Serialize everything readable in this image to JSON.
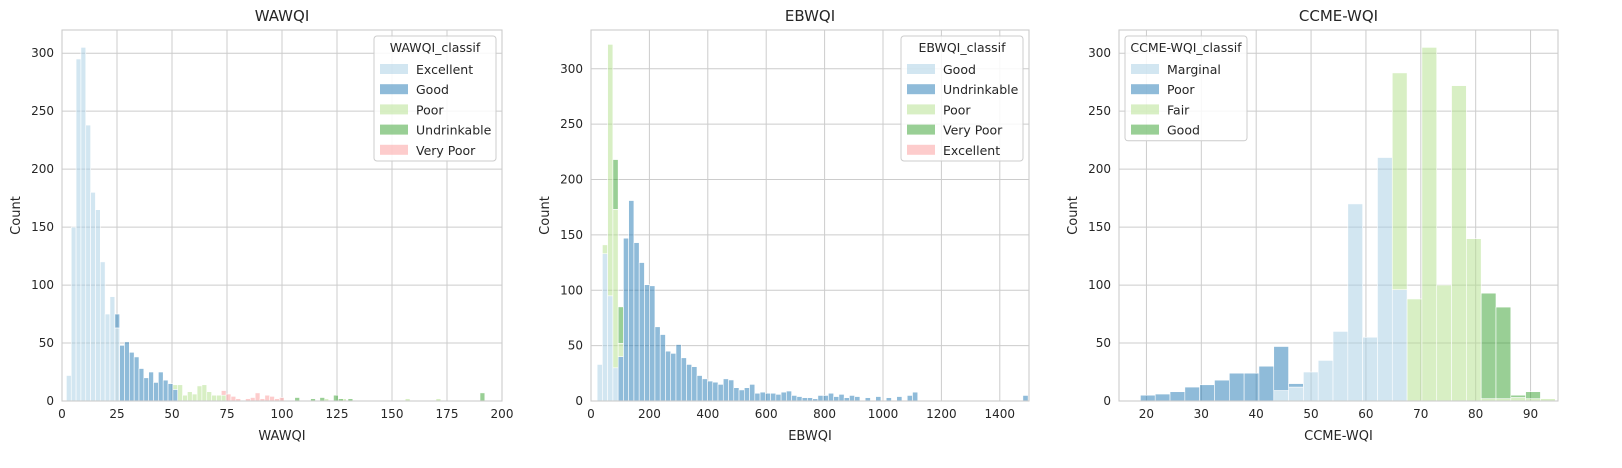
{
  "figure": {
    "background": "#ffffff"
  },
  "palette": {
    "light_blue": "#a6cee3",
    "blue": "#1f78b4",
    "light_green": "#b2df8a",
    "green": "#33a02c",
    "pink": "#fb9a99",
    "grid": "#cccccc",
    "bar_alpha": 0.5
  },
  "chart_data": [
    {
      "type": "bar",
      "subtype": "stacked-histogram",
      "title": "WAWQI",
      "xlabel": "WAWQI",
      "ylabel": "Count",
      "xlim": [
        0,
        200
      ],
      "ylim": [
        0,
        320
      ],
      "xticks": [
        0,
        25,
        50,
        75,
        100,
        125,
        150,
        175,
        200
      ],
      "yticks": [
        0,
        50,
        100,
        150,
        200,
        250,
        300
      ],
      "grid": true,
      "bin_width": 2.2,
      "legend": {
        "title": "WAWQI_classif",
        "position": "top-right"
      },
      "series": [
        {
          "name": "Excellent",
          "color": "#a6cee3",
          "x": [
            2,
            4.2,
            6.4,
            8.6,
            10.8,
            13,
            15.2,
            17.4,
            19.6,
            21.8,
            24
          ],
          "values": [
            22,
            150,
            295,
            305,
            238,
            180,
            165,
            120,
            75,
            90,
            63
          ]
        },
        {
          "name": "Good",
          "color": "#1f78b4",
          "x": [
            24,
            26.2,
            28.4,
            30.6,
            32.8,
            35,
            37.2,
            39.4,
            41.6,
            43.8,
            46,
            48.2,
            50.4
          ],
          "values": [
            12,
            48,
            51,
            42,
            38,
            28,
            20,
            25,
            16,
            25,
            18,
            15,
            10
          ]
        },
        {
          "name": "Poor",
          "color": "#b2df8a",
          "x": [
            50.4,
            52.6,
            54.8,
            57,
            59.2,
            61.4,
            63.6,
            65.8,
            68,
            70.2,
            72.4,
            119,
            127,
            156,
            170
          ],
          "values": [
            4,
            14,
            5,
            8,
            6,
            13,
            14,
            8,
            5,
            5,
            5,
            2,
            2,
            2,
            2
          ]
        },
        {
          "name": "Undrinkable",
          "color": "#33a02c",
          "x": [
            105.8,
            113,
            117.2,
            123.4,
            125.6,
            130,
            190
          ],
          "values": [
            3,
            2,
            3,
            5,
            2,
            2,
            7
          ]
        },
        {
          "name": "Very Poor",
          "color": "#fb9a99",
          "x": [
            72.4,
            74.6,
            76.8,
            79,
            83.4,
            85.6,
            87.8,
            90,
            92.2,
            94.4,
            96.6,
            98.8
          ],
          "values": [
            4,
            6,
            4,
            2,
            2,
            3,
            7,
            2,
            5,
            4,
            2,
            3
          ]
        }
      ]
    },
    {
      "type": "bar",
      "subtype": "stacked-histogram",
      "title": "EBWQI",
      "xlabel": "EBWQI",
      "ylabel": "Count",
      "xlim": [
        0,
        1500
      ],
      "ylim": [
        0,
        335
      ],
      "xticks": [
        0,
        200,
        400,
        600,
        800,
        1000,
        1200,
        1400
      ],
      "yticks": [
        0,
        50,
        100,
        150,
        200,
        250,
        300
      ],
      "grid": true,
      "bin_width": 18,
      "legend": {
        "title": "EBWQI_classif",
        "position": "top-right"
      },
      "series": [
        {
          "name": "Good",
          "color": "#a6cee3",
          "x": [
            21,
            39,
            57,
            75
          ],
          "values": [
            33,
            133,
            95,
            30
          ]
        },
        {
          "name": "Undrinkable",
          "color": "#1f78b4",
          "x": [
            93,
            111,
            129,
            147,
            165,
            183,
            201,
            219,
            237,
            255,
            273,
            291,
            309,
            327,
            345,
            363,
            381,
            399,
            417,
            435,
            453,
            471,
            489,
            507,
            525,
            543,
            561,
            579,
            597,
            615,
            633,
            651,
            669,
            687,
            705,
            723,
            741,
            759,
            777,
            795,
            813,
            831,
            849,
            867,
            885,
            903,
            939,
            975,
            1011,
            1047,
            1083,
            1101,
            1479
          ],
          "values": [
            40,
            147,
            181,
            143,
            125,
            105,
            104,
            67,
            60,
            45,
            43,
            51,
            39,
            33,
            31,
            23,
            20,
            18,
            17,
            15,
            20,
            19,
            12,
            10,
            12,
            15,
            7,
            8,
            7,
            7,
            6,
            8,
            9,
            5,
            4,
            3,
            3,
            2,
            5,
            5,
            7,
            4,
            6,
            3,
            5,
            4,
            3,
            4,
            3,
            4,
            5,
            8,
            5
          ]
        },
        {
          "name": "Poor",
          "color": "#b2df8a",
          "x": [
            39,
            57,
            75,
            93
          ],
          "values": [
            8,
            227,
            143,
            12
          ]
        },
        {
          "name": "Very Poor",
          "color": "#33a02c",
          "x": [
            75,
            93
          ],
          "values": [
            45,
            33
          ]
        },
        {
          "name": "Excellent",
          "color": "#fb9a99",
          "x": [],
          "values": []
        }
      ]
    },
    {
      "type": "bar",
      "subtype": "stacked-histogram",
      "title": "CCME-WQI",
      "xlabel": "CCME-WQI",
      "ylabel": "Count",
      "xlim": [
        15,
        95
      ],
      "ylim": [
        0,
        320
      ],
      "xticks": [
        20,
        30,
        40,
        50,
        60,
        70,
        80,
        90
      ],
      "yticks": [
        0,
        50,
        100,
        150,
        200,
        250,
        300
      ],
      "grid": true,
      "bin_width": 2.7,
      "legend": {
        "title": "CCME-WQI_classif",
        "position": "top-left"
      },
      "series": [
        {
          "name": "Marginal",
          "color": "#a6cee3",
          "x": [
            43.2,
            45.9,
            48.6,
            51.3,
            54,
            56.7,
            59.4,
            62.1,
            64.8
          ],
          "values": [
            9,
            12,
            25,
            35,
            60,
            170,
            55,
            210,
            96
          ]
        },
        {
          "name": "Poor",
          "color": "#1f78b4",
          "x": [
            18.9,
            21.6,
            24.3,
            27,
            29.7,
            32.4,
            35.1,
            37.8,
            40.5,
            43.2,
            45.9
          ],
          "values": [
            5,
            6,
            8,
            12,
            14,
            18,
            24,
            24,
            30,
            38,
            3
          ]
        },
        {
          "name": "Fair",
          "color": "#b2df8a",
          "x": [
            64.8,
            67.5,
            70.2,
            72.9,
            75.6,
            78.3,
            81,
            83.7,
            86.4,
            89.1,
            91.8
          ],
          "values": [
            187,
            88,
            305,
            100,
            272,
            140,
            2,
            2,
            3,
            2,
            2
          ]
        },
        {
          "name": "Good",
          "color": "#33a02c",
          "x": [
            81,
            83.7,
            86.4,
            89.1
          ],
          "values": [
            91,
            79,
            2,
            6
          ]
        }
      ]
    }
  ]
}
